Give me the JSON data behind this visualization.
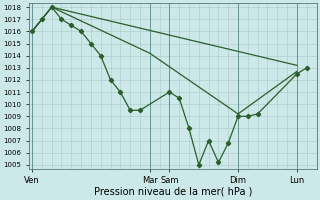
{
  "background_color": "#cde8e8",
  "grid_color_major": "#a8c8c8",
  "grid_color_minor": "#b8d8d8",
  "line_color": "#2a5e2a",
  "marker": "D",
  "marker_size": 2.2,
  "line_width": 0.9,
  "ylabel_min": 1005,
  "ylabel_max": 1018,
  "xlabel": "Pression niveau de la mer( hPa )",
  "xlabel_fontsize": 7,
  "ytick_fontsize": 5,
  "xtick_fontsize": 6,
  "day_labels": [
    "Ven",
    "Mar",
    "Sam",
    "Dim",
    "Lun"
  ],
  "day_x": [
    0,
    12,
    14,
    21,
    27
  ],
  "xlim": [
    -0.3,
    29
  ],
  "series1_x": [
    0,
    1,
    2,
    3,
    4,
    5,
    6,
    7,
    8,
    9,
    10,
    11,
    14,
    15,
    16,
    17,
    18,
    19,
    20,
    21,
    22,
    23,
    27,
    28
  ],
  "series1_y": [
    1016,
    1017,
    1018,
    1017,
    1016.5,
    1016,
    1015,
    1014,
    1012,
    1011,
    1009.5,
    1009.5,
    1011,
    1010.5,
    1008,
    1005,
    1007,
    1005.2,
    1006.8,
    1009,
    1009,
    1009.2,
    1012.5,
    1013
  ],
  "series2_x": [
    0,
    2,
    12,
    21,
    27
  ],
  "series2_y": [
    1016,
    1018,
    1014.2,
    1009.2,
    1012.7
  ],
  "series3_x": [
    0,
    2,
    27
  ],
  "series3_y": [
    1016,
    1018,
    1013.2
  ]
}
